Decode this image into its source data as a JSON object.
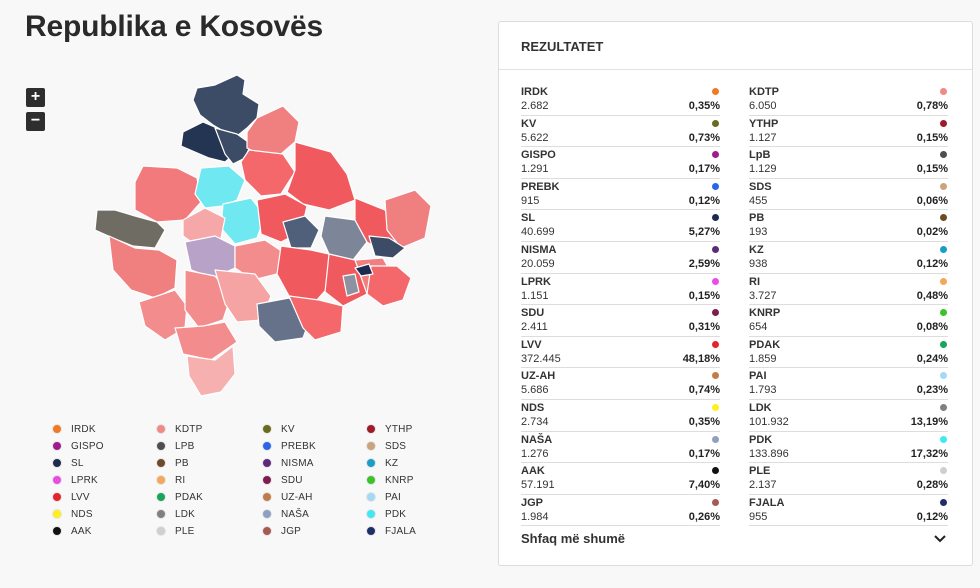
{
  "page": {
    "title": "Republika e Kosovës"
  },
  "zoom": {
    "in_label": "+",
    "out_label": "−"
  },
  "legend": [
    {
      "label": "IRDK",
      "color": "#f07a24"
    },
    {
      "label": "KDTP",
      "color": "#f08a86"
    },
    {
      "label": "KV",
      "color": "#6b6b1e"
    },
    {
      "label": "YTHP",
      "color": "#9e1b2a"
    },
    {
      "label": "GISPO",
      "color": "#a21b8e"
    },
    {
      "label": "LPB",
      "color": "#4e4e4e"
    },
    {
      "label": "PREBK",
      "color": "#2c66e8"
    },
    {
      "label": "SDS",
      "color": "#c9a47c"
    },
    {
      "label": "SL",
      "color": "#1d2c4e"
    },
    {
      "label": "PB",
      "color": "#6e4a28"
    },
    {
      "label": "NISMA",
      "color": "#5b2a7a"
    },
    {
      "label": "KZ",
      "color": "#1a9ec8"
    },
    {
      "label": "LPRK",
      "color": "#e94de3"
    },
    {
      "label": "RI",
      "color": "#f4a65a"
    },
    {
      "label": "SDU",
      "color": "#7d1e4e"
    },
    {
      "label": "KNRP",
      "color": "#3dc22a"
    },
    {
      "label": "LVV",
      "color": "#e5232a"
    },
    {
      "label": "PDAK",
      "color": "#16a55a"
    },
    {
      "label": "UZ-AH",
      "color": "#c27c48"
    },
    {
      "label": "PAI",
      "color": "#a4d9f5"
    },
    {
      "label": "NDS",
      "color": "#ffef1a"
    },
    {
      "label": "LDK",
      "color": "#808080"
    },
    {
      "label": "NAŠA",
      "color": "#8ea0c2"
    },
    {
      "label": "PDK",
      "color": "#40e8f2"
    },
    {
      "label": "AAK",
      "color": "#111111"
    },
    {
      "label": "PLE",
      "color": "#cfcfcf"
    },
    {
      "label": "JGP",
      "color": "#a65a52"
    },
    {
      "label": "FJALA",
      "color": "#1f2e66"
    }
  ],
  "panel": {
    "title": "REZULTATET",
    "show_more": "Shfaq më shumë"
  },
  "results": [
    {
      "name": "IRDK",
      "votes": "2.682",
      "pct": "0,35%",
      "color": "#f07a24"
    },
    {
      "name": "KDTP",
      "votes": "6.050",
      "pct": "0,78%",
      "color": "#f08a86"
    },
    {
      "name": "KV",
      "votes": "5.622",
      "pct": "0,73%",
      "color": "#6b6b1e"
    },
    {
      "name": "YTHP",
      "votes": "1.127",
      "pct": "0,15%",
      "color": "#9e1b2a"
    },
    {
      "name": "GISPO",
      "votes": "1.291",
      "pct": "0,17%",
      "color": "#a21b8e"
    },
    {
      "name": "LpB",
      "votes": "1.129",
      "pct": "0,15%",
      "color": "#4e4e4e"
    },
    {
      "name": "PREBK",
      "votes": "915",
      "pct": "0,12%",
      "color": "#2c66e8"
    },
    {
      "name": "SDS",
      "votes": "455",
      "pct": "0,06%",
      "color": "#c9a47c"
    },
    {
      "name": "SL",
      "votes": "40.699",
      "pct": "5,27%",
      "color": "#1d2c4e"
    },
    {
      "name": "PB",
      "votes": "193",
      "pct": "0,02%",
      "color": "#6e4a28"
    },
    {
      "name": "NISMA",
      "votes": "20.059",
      "pct": "2,59%",
      "color": "#5b2a7a"
    },
    {
      "name": "KZ",
      "votes": "938",
      "pct": "0,12%",
      "color": "#1a9ec8"
    },
    {
      "name": "LPRK",
      "votes": "1.151",
      "pct": "0,15%",
      "color": "#e94de3"
    },
    {
      "name": "RI",
      "votes": "3.727",
      "pct": "0,48%",
      "color": "#f4a65a"
    },
    {
      "name": "SDU",
      "votes": "2.411",
      "pct": "0,31%",
      "color": "#7d1e4e"
    },
    {
      "name": "KNRP",
      "votes": "654",
      "pct": "0,08%",
      "color": "#3dc22a"
    },
    {
      "name": "LVV",
      "votes": "372.445",
      "pct": "48,18%",
      "color": "#e5232a"
    },
    {
      "name": "PDAK",
      "votes": "1.859",
      "pct": "0,24%",
      "color": "#16a55a"
    },
    {
      "name": "UZ-AH",
      "votes": "5.686",
      "pct": "0,74%",
      "color": "#c27c48"
    },
    {
      "name": "PAI",
      "votes": "1.793",
      "pct": "0,23%",
      "color": "#a4d9f5"
    },
    {
      "name": "NDS",
      "votes": "2.734",
      "pct": "0,35%",
      "color": "#ffef1a"
    },
    {
      "name": "LDK",
      "votes": "101.932",
      "pct": "13,19%",
      "color": "#808080"
    },
    {
      "name": "NAŠA",
      "votes": "1.276",
      "pct": "0,17%",
      "color": "#8ea0c2"
    },
    {
      "name": "PDK",
      "votes": "133.896",
      "pct": "17,32%",
      "color": "#40e8f2"
    },
    {
      "name": "AAK",
      "votes": "57.191",
      "pct": "7,40%",
      "color": "#111111"
    },
    {
      "name": "PLE",
      "votes": "2.137",
      "pct": "0,28%",
      "color": "#cfcfcf"
    },
    {
      "name": "JGP",
      "votes": "1.984",
      "pct": "0,26%",
      "color": "#a65a52"
    },
    {
      "name": "FJALA",
      "votes": "955",
      "pct": "0,12%",
      "color": "#1f2e66"
    }
  ]
}
